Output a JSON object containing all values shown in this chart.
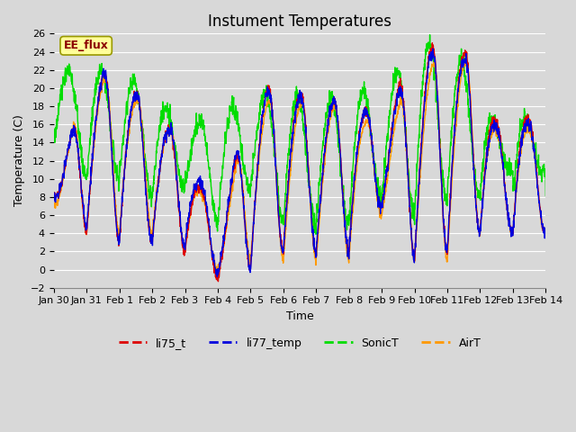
{
  "title": "Instument Temperatures",
  "xlabel": "Time",
  "ylabel": "Temperature (C)",
  "ylim": [
    -2,
    26
  ],
  "yticks": [
    -2,
    0,
    2,
    4,
    6,
    8,
    10,
    12,
    14,
    16,
    18,
    20,
    22,
    24,
    26
  ],
  "x_labels": [
    "Jan 30",
    "Jan 31",
    "Feb 1",
    "Feb 2",
    "Feb 3",
    "Feb 4",
    "Feb 5",
    "Feb 6",
    "Feb 7",
    "Feb 8",
    "Feb 9",
    "Feb 10",
    "Feb 11",
    "Feb 12",
    "Feb 13",
    "Feb 14"
  ],
  "annotation_text": "EE_flux",
  "colors": {
    "li75_t": "#dd0000",
    "li77_temp": "#0000dd",
    "SonicT": "#00dd00",
    "AirT": "#ff9900"
  },
  "legend_labels": [
    "li75_t",
    "li77_temp",
    "SonicT",
    "AirT"
  ],
  "bg_color": "#d8d8d8",
  "grid_color": "#ffffff",
  "title_fontsize": 12,
  "axis_label_fontsize": 9,
  "tick_fontsize": 8
}
